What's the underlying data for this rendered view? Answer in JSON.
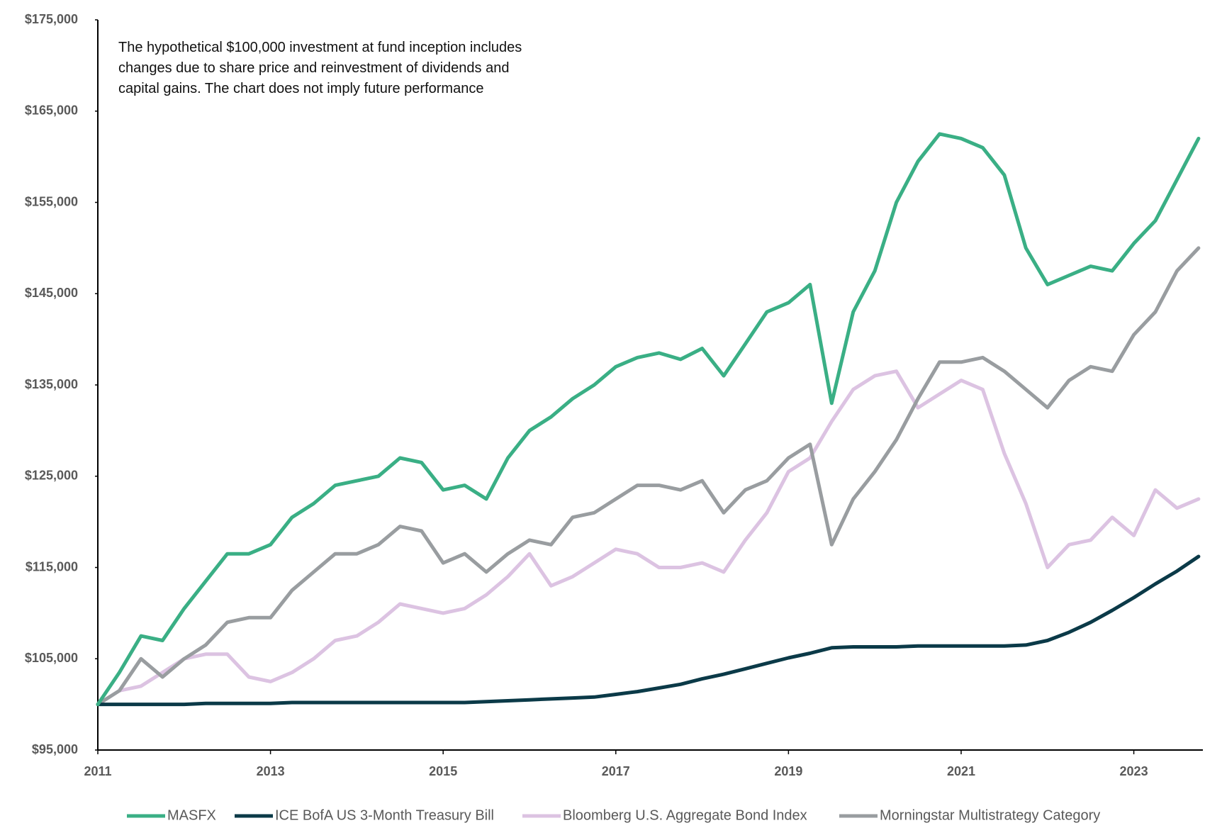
{
  "chart_data": {
    "type": "line",
    "annotation": [
      "The hypothetical $100,000 investment at fund inception includes",
      "changes due to share price and reinvestment of dividends and",
      "capital gains. The chart does not imply future performance"
    ],
    "x": [
      2011,
      2011.25,
      2011.5,
      2011.75,
      2012,
      2012.25,
      2012.5,
      2012.75,
      2013,
      2013.25,
      2013.5,
      2013.75,
      2014,
      2014.25,
      2014.5,
      2014.75,
      2015,
      2015.25,
      2015.5,
      2015.75,
      2016,
      2016.25,
      2016.5,
      2016.75,
      2017,
      2017.25,
      2017.5,
      2017.75,
      2018,
      2018.25,
      2018.5,
      2018.75,
      2019,
      2019.25,
      2019.5,
      2019.75,
      2020,
      2020.25,
      2020.5,
      2020.75,
      2021,
      2021.25,
      2021.5,
      2021.75,
      2022,
      2022.25,
      2022.5,
      2022.75,
      2023,
      2023.25,
      2023.5,
      2023.75
    ],
    "series": [
      {
        "name": "MASFX",
        "color": "#3aaf85",
        "values": [
          100000,
          103500,
          107500,
          107000,
          110500,
          113500,
          116500,
          116500,
          117500,
          120500,
          122000,
          124000,
          124500,
          125000,
          127000,
          126500,
          123500,
          124000,
          122500,
          127000,
          130000,
          131500,
          133500,
          135000,
          137000,
          138000,
          138500,
          137800,
          139000,
          136000,
          139500,
          143000,
          144000,
          146000,
          133000,
          143000,
          147500,
          155000,
          159500,
          162500,
          162000,
          161000,
          158000,
          150000,
          146000,
          147000,
          148000,
          147500,
          150500,
          153000,
          157500,
          162000
        ]
      },
      {
        "name": "ICE BofA US 3-Month Treasury Bill",
        "color": "#0b3a48",
        "values": [
          100000,
          100000,
          100000,
          100000,
          100000,
          100100,
          100100,
          100100,
          100100,
          100200,
          100200,
          100200,
          100200,
          100200,
          100200,
          100200,
          100200,
          100200,
          100300,
          100400,
          100500,
          100600,
          100700,
          100800,
          101100,
          101400,
          101800,
          102200,
          102800,
          103300,
          103900,
          104500,
          105100,
          105600,
          106200,
          106300,
          106300,
          106300,
          106400,
          106400,
          106400,
          106400,
          106400,
          106500,
          107000,
          107900,
          109000,
          110300,
          111700,
          113200,
          114600,
          116200
        ]
      },
      {
        "name": "Bloomberg U.S. Aggregate Bond Index",
        "color": "#dcc3e2",
        "values": [
          100000,
          101500,
          102000,
          103500,
          105000,
          105500,
          105500,
          103000,
          102500,
          103500,
          105000,
          107000,
          107500,
          109000,
          111000,
          110500,
          110000,
          110500,
          112000,
          114000,
          116500,
          113000,
          114000,
          115500,
          117000,
          116500,
          115000,
          115000,
          115500,
          114500,
          118000,
          121000,
          125500,
          127000,
          131000,
          134500,
          136000,
          136500,
          132500,
          134000,
          135500,
          134500,
          127500,
          122000,
          115000,
          117500,
          118000,
          120500,
          118500,
          123500,
          121500,
          122500
        ]
      },
      {
        "name": "Morningstar Multistrategy Category",
        "color": "#999da0",
        "values": [
          100000,
          101500,
          105000,
          103000,
          105000,
          106500,
          109000,
          109500,
          109500,
          112500,
          114500,
          116500,
          116500,
          117500,
          119500,
          119000,
          115500,
          116500,
          114500,
          116500,
          118000,
          117500,
          120500,
          121000,
          122500,
          124000,
          124000,
          123500,
          124500,
          121000,
          123500,
          124500,
          127000,
          128500,
          117500,
          122500,
          125500,
          129000,
          133500,
          137500,
          137500,
          138000,
          136500,
          134500,
          132500,
          135500,
          137000,
          136500,
          140500,
          143000,
          147500,
          150000
        ]
      }
    ],
    "xlim": [
      2011,
      2023.8
    ],
    "xticks": [
      2011,
      2013,
      2015,
      2017,
      2019,
      2021,
      2023
    ],
    "ylim": [
      95000,
      175000
    ],
    "yticks": [
      {
        "value": 95000,
        "label": "$95,000"
      },
      {
        "value": 105000,
        "label": "$105,000"
      },
      {
        "value": 115000,
        "label": "$115,000"
      },
      {
        "value": 125000,
        "label": "$125,000"
      },
      {
        "value": 135000,
        "label": "$135,000"
      },
      {
        "value": 145000,
        "label": "$145,000"
      },
      {
        "value": 155000,
        "label": "$155,000"
      },
      {
        "value": 165000,
        "label": "$165,000"
      },
      {
        "value": 175000,
        "label": "$175,000"
      }
    ],
    "grid": false,
    "legend": "bottom"
  }
}
